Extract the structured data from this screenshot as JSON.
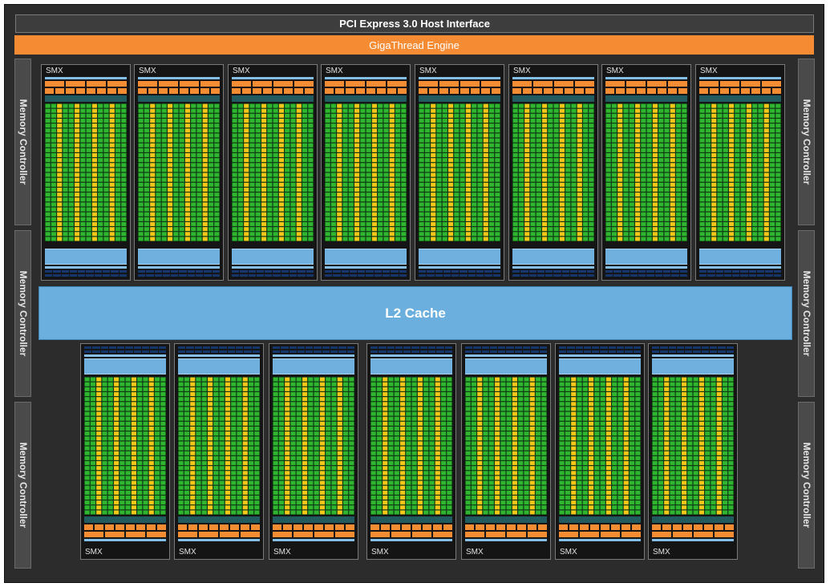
{
  "host_interface": "PCI Express 3.0 Host Interface",
  "thread_engine": "GigaThread Engine",
  "l2_cache": "L2 Cache",
  "memory_controllers": {
    "left": [
      "Memory Controller",
      "Memory Controller",
      "Memory Controller"
    ],
    "right": [
      "Memory Controller",
      "Memory Controller",
      "Memory Controller"
    ]
  },
  "smx_top": [
    "SMX",
    "SMX",
    "SMX",
    "SMX",
    "SMX",
    "SMX",
    "SMX",
    "SMX"
  ],
  "smx_bottom": [
    "SMX",
    "SMX",
    "SMX",
    "SMX",
    "SMX",
    "SMX",
    "SMX"
  ],
  "colors": {
    "chip_background": "#2c2c2c",
    "giga_thread": "#f58c34",
    "l2_cache": "#6aafde",
    "core_green": "#2fb52f",
    "core_yellow": "#f6c619",
    "register_navy": "#15366a"
  }
}
